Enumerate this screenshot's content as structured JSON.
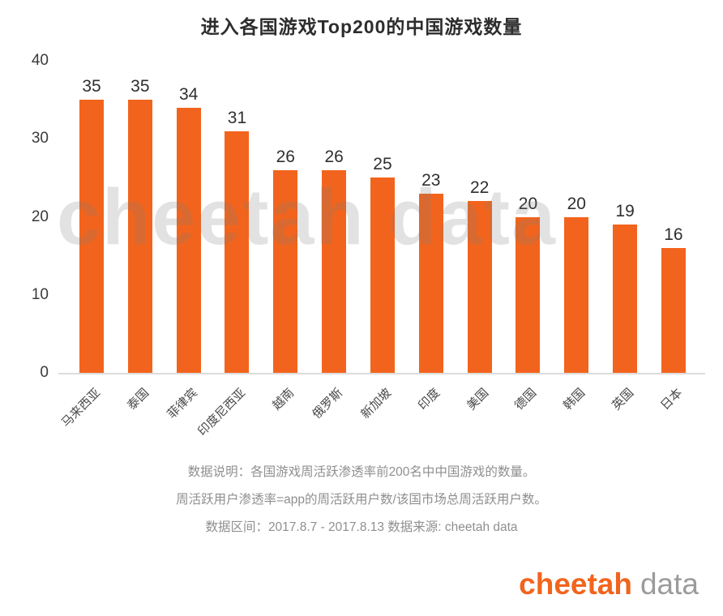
{
  "chart_data": {
    "type": "bar",
    "title": "进入各国游戏Top200的中国游戏数量",
    "categories": [
      "马来西亚",
      "泰国",
      "菲律宾",
      "印度尼西亚",
      "越南",
      "俄罗斯",
      "新加坡",
      "印度",
      "美国",
      "德国",
      "韩国",
      "英国",
      "日本"
    ],
    "values": [
      35,
      35,
      34,
      31,
      26,
      26,
      25,
      23,
      22,
      20,
      20,
      19,
      16
    ],
    "bar_color": "#F2641D",
    "ylim": [
      0,
      40
    ],
    "yticks": [
      0,
      10,
      20,
      30,
      40
    ],
    "grid": false,
    "legend": "none",
    "value_labels": true,
    "xlabel": "",
    "ylabel": ""
  },
  "watermark": "cheetah data",
  "footnotes": {
    "line1": "数据说明：各国游戏周活跃渗透率前200名中中国游戏的数量。",
    "line2": "周活跃用户渗透率=app的周活跃用户数/该国市场总周活跃用户数。",
    "line3": "数据区间：2017.8.7 - 2017.8.13 数据来源: cheetah data"
  },
  "logo": {
    "brand": "cheetah",
    "suffix": "data"
  }
}
